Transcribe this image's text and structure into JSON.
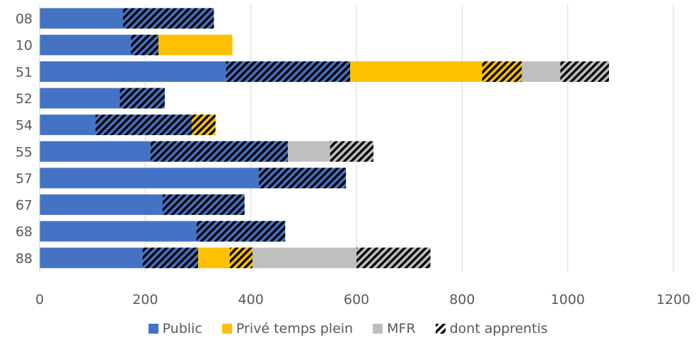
{
  "chart_data": {
    "type": "bar",
    "orientation": "horizontal",
    "stacked": true,
    "categories": [
      "08",
      "10",
      "51",
      "52",
      "54",
      "55",
      "57",
      "67",
      "68",
      "88"
    ],
    "series": [
      {
        "name": "Public",
        "color": "#4472C4",
        "values": [
          330,
          225,
          588,
          237,
          288,
          470,
          580,
          388,
          465,
          300
        ]
      },
      {
        "name": "Privé temps plein",
        "color": "#FFC000",
        "values": [
          0,
          140,
          325,
          0,
          45,
          0,
          0,
          0,
          0,
          103
        ]
      },
      {
        "name": "MFR",
        "color": "#BFBFBF",
        "values": [
          0,
          0,
          165,
          0,
          0,
          162,
          0,
          0,
          0,
          337
        ]
      }
    ],
    "apprentis": {
      "name": "dont apprentis",
      "pattern": "hatched",
      "Public": [
        172,
        52,
        235,
        85,
        182,
        260,
        165,
        155,
        168,
        105
      ],
      "Privé temps plein": [
        0,
        0,
        75,
        0,
        45,
        0,
        0,
        0,
        0,
        43
      ],
      "MFR": [
        0,
        0,
        92,
        0,
        0,
        82,
        0,
        0,
        0,
        140
      ]
    },
    "xlim": [
      0,
      1200
    ],
    "xticks": [
      0,
      200,
      400,
      600,
      800,
      1000,
      1200
    ],
    "grid": true,
    "legend_position": "bottom"
  },
  "legend": {
    "public": "Public",
    "prive": "Privé temps plein",
    "mfr": "MFR",
    "apprentis": "dont apprentis"
  }
}
